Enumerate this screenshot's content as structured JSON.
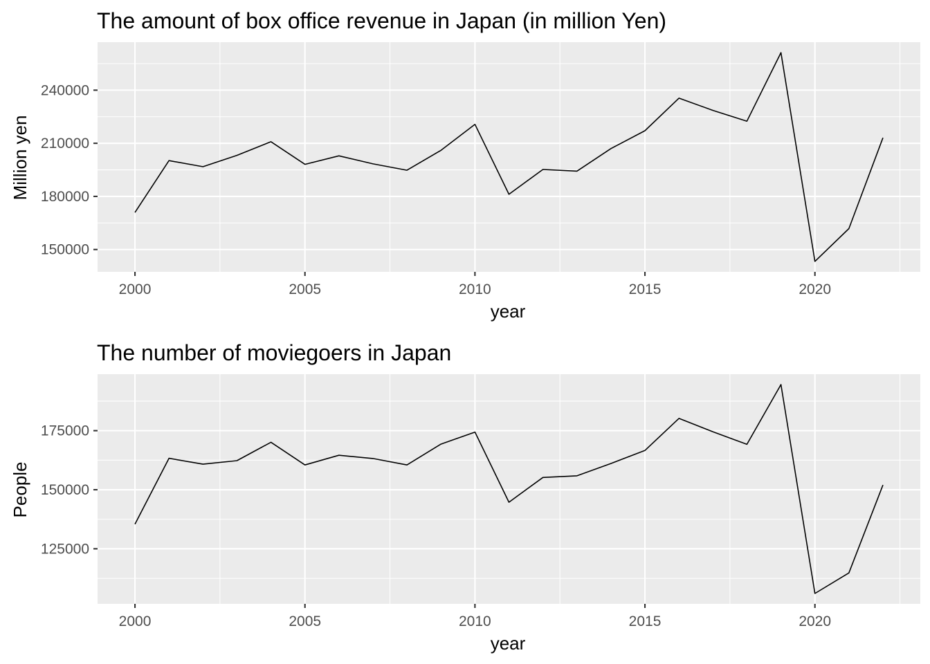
{
  "chart_data": [
    {
      "type": "line",
      "title": "The amount of box office revenue in Japan (in million Yen)",
      "xlabel": "year",
      "ylabel": "Million yen",
      "x": [
        2000,
        2001,
        2002,
        2003,
        2004,
        2005,
        2006,
        2007,
        2008,
        2009,
        2010,
        2011,
        2012,
        2013,
        2014,
        2015,
        2016,
        2017,
        2018,
        2019,
        2020,
        2021,
        2022
      ],
      "series": [
        {
          "values": [
            170900,
            200200,
            196800,
            203200,
            210900,
            198100,
            202900,
            198400,
            194800,
            206000,
            220700,
            181200,
            195200,
            194300,
            207000,
            217100,
            235500,
            228600,
            222500,
            261200,
            143300,
            161800,
            213100
          ]
        }
      ],
      "xticks": [
        2000,
        2005,
        2010,
        2015,
        2020
      ],
      "xtick_labels": [
        "2000",
        "2005",
        "2010",
        "2015",
        "2020"
      ],
      "yticks": [
        150000,
        180000,
        210000,
        240000
      ],
      "ytick_labels": [
        "150000",
        "180000",
        "210000",
        "240000"
      ],
      "xlim": [
        1998.9,
        2023.1
      ],
      "ylim": [
        137400,
        267100
      ],
      "grid": true,
      "panel_color": "#ebebeb",
      "line_color": "#000000"
    },
    {
      "type": "line",
      "title": "The number of moviegoers in Japan",
      "xlabel": "year",
      "ylabel": "People",
      "x": [
        2000,
        2001,
        2002,
        2003,
        2004,
        2005,
        2006,
        2007,
        2008,
        2009,
        2010,
        2011,
        2012,
        2013,
        2014,
        2015,
        2016,
        2017,
        2018,
        2019,
        2020,
        2021,
        2022
      ],
      "series": [
        {
          "values": [
            135400,
            163300,
            160800,
            162300,
            170100,
            160500,
            164600,
            163200,
            160500,
            169300,
            174400,
            144700,
            155200,
            155900,
            161100,
            166600,
            180200,
            174500,
            169200,
            194500,
            106100,
            114800,
            152000
          ]
        }
      ],
      "xticks": [
        2000,
        2005,
        2010,
        2015,
        2020
      ],
      "xtick_labels": [
        "2000",
        "2005",
        "2010",
        "2015",
        "2020"
      ],
      "yticks": [
        125000,
        150000,
        175000
      ],
      "ytick_labels": [
        "125000",
        "150000",
        "175000"
      ],
      "xlim": [
        1998.9,
        2023.1
      ],
      "ylim": [
        101700,
        198900
      ],
      "grid": true,
      "panel_color": "#ebebeb",
      "line_color": "#000000"
    }
  ]
}
